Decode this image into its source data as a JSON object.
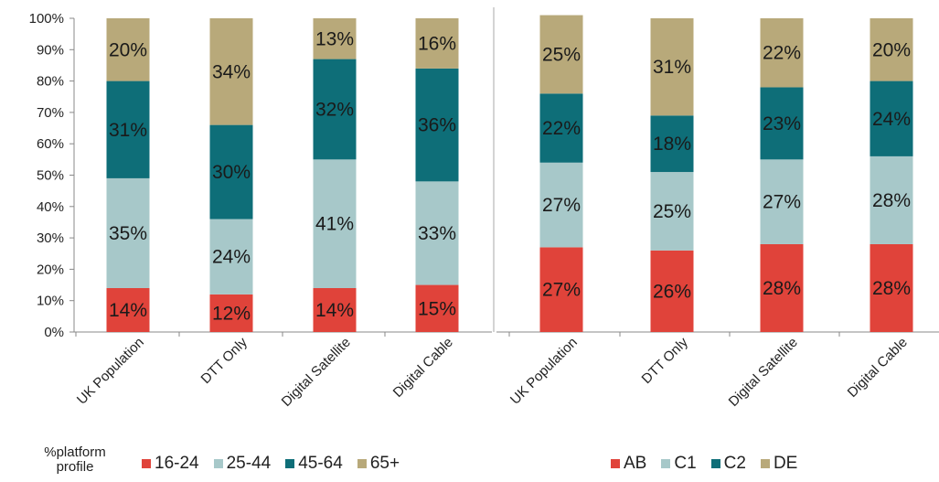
{
  "chart_data": [
    {
      "type": "bar",
      "stacked": true,
      "categories": [
        "UK Population",
        "DTT Only",
        "Digital Satellite",
        "Digital Cable"
      ],
      "ylim": [
        0,
        100
      ],
      "yticks": [
        "0%",
        "10%",
        "20%",
        "30%",
        "40%",
        "50%",
        "60%",
        "70%",
        "80%",
        "90%",
        "100%"
      ],
      "grid": false,
      "series": [
        {
          "name": "16-24",
          "color": "#e0433a",
          "values": [
            14,
            12,
            14,
            15
          ]
        },
        {
          "name": "25-44",
          "color": "#a7c8c9",
          "values": [
            35,
            24,
            41,
            33
          ]
        },
        {
          "name": "45-64",
          "color": "#0e6e78",
          "values": [
            31,
            30,
            32,
            36
          ]
        },
        {
          "name": "65+",
          "color": "#b8a97a",
          "values": [
            20,
            34,
            13,
            16
          ]
        }
      ]
    },
    {
      "type": "bar",
      "stacked": true,
      "categories": [
        "UK Population",
        "DTT Only",
        "Digital Satellite",
        "Digital Cable"
      ],
      "ylim": [
        0,
        100
      ],
      "grid": false,
      "series": [
        {
          "name": "AB",
          "color": "#e0433a",
          "values": [
            27,
            26,
            28,
            28
          ]
        },
        {
          "name": "C1",
          "color": "#a7c8c9",
          "values": [
            27,
            25,
            27,
            28
          ]
        },
        {
          "name": "C2",
          "color": "#0e6e78",
          "values": [
            22,
            18,
            23,
            24
          ]
        },
        {
          "name": "DE",
          "color": "#b8a97a",
          "values": [
            25,
            31,
            22,
            20
          ]
        }
      ]
    }
  ],
  "legend_title": "%platform profile"
}
